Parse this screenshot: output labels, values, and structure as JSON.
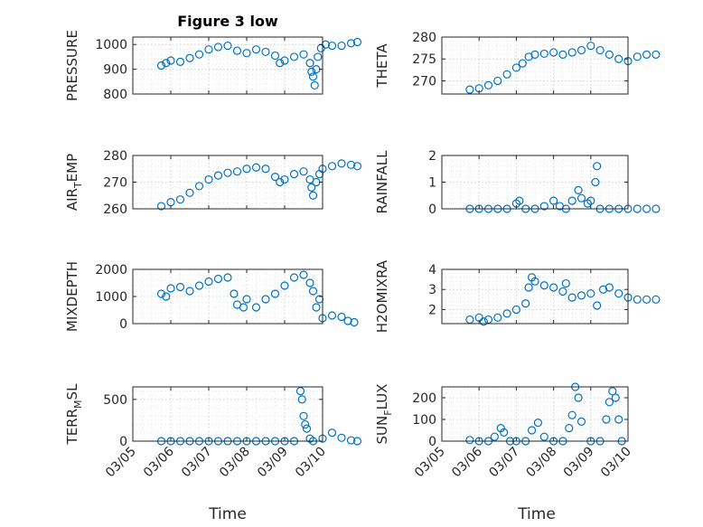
{
  "figure": {
    "title": "Figure 3 low",
    "xlabel": "Time"
  },
  "chart_data": [
    {
      "type": "scatter",
      "ylabel": "PRESSURE",
      "ylabel_sub": "",
      "ylim": [
        800,
        1030
      ],
      "yticks": [
        800,
        900,
        1000
      ],
      "ytick_labels": [
        "800",
        "900",
        "1000"
      ],
      "xlim": [
        "03/05",
        "03/10"
      ],
      "points": [
        [
          "03/05 18:00",
          915
        ],
        [
          "03/05 21:00",
          925
        ],
        [
          "03/06 00:00",
          935
        ],
        [
          "03/06 06:00",
          930
        ],
        [
          "03/06 12:00",
          945
        ],
        [
          "03/06 18:00",
          960
        ],
        [
          "03/07 00:00",
          980
        ],
        [
          "03/07 06:00",
          990
        ],
        [
          "03/07 12:00",
          995
        ],
        [
          "03/07 18:00",
          975
        ],
        [
          "03/08 00:00",
          965
        ],
        [
          "03/08 06:00",
          980
        ],
        [
          "03/08 12:00",
          970
        ],
        [
          "03/08 18:00",
          955
        ],
        [
          "03/08 21:00",
          925
        ],
        [
          "03/09 00:00",
          935
        ],
        [
          "03/09 06:00",
          950
        ],
        [
          "03/09 12:00",
          960
        ],
        [
          "03/09 16:00",
          925
        ],
        [
          "03/09 17:00",
          890
        ],
        [
          "03/09 18:00",
          870
        ],
        [
          "03/09 19:00",
          835
        ],
        [
          "03/09 20:00",
          900
        ],
        [
          "03/09 21:00",
          950
        ],
        [
          "03/09 23:00",
          985
        ],
        [
          "03/10 02:00",
          1000
        ],
        [
          "03/10 06:00",
          995
        ],
        [
          "03/10 12:00",
          995
        ],
        [
          "03/10 18:00",
          1005
        ],
        [
          "03/10 22:00",
          1010
        ]
      ]
    },
    {
      "type": "scatter",
      "ylabel": "THETA",
      "ylabel_sub": "",
      "ylim": [
        267,
        280
      ],
      "yticks": [
        270,
        275,
        280
      ],
      "ytick_labels": [
        "270",
        "275",
        "280"
      ],
      "xlim": [
        "03/05",
        "03/10"
      ],
      "points": [
        [
          "03/05 18:00",
          268
        ],
        [
          "03/06 00:00",
          268.3
        ],
        [
          "03/06 06:00",
          269
        ],
        [
          "03/06 12:00",
          270
        ],
        [
          "03/06 18:00",
          271.5
        ],
        [
          "03/07 00:00",
          273
        ],
        [
          "03/07 04:00",
          274
        ],
        [
          "03/07 08:00",
          275.5
        ],
        [
          "03/07 12:00",
          276
        ],
        [
          "03/07 18:00",
          276.2
        ],
        [
          "03/08 00:00",
          276.5
        ],
        [
          "03/08 06:00",
          276
        ],
        [
          "03/08 12:00",
          276.5
        ],
        [
          "03/08 18:00",
          277
        ],
        [
          "03/09 00:00",
          278
        ],
        [
          "03/09 06:00",
          277
        ],
        [
          "03/09 12:00",
          276
        ],
        [
          "03/09 18:00",
          275
        ],
        [
          "03/10 00:00",
          274.5
        ],
        [
          "03/10 06:00",
          275.5
        ],
        [
          "03/10 12:00",
          276
        ],
        [
          "03/10 18:00",
          276
        ]
      ]
    },
    {
      "type": "scatter",
      "ylabel": "AIR",
      "ylabel_sub": "T",
      "ylabel_after": "EMP",
      "ylim": [
        260,
        280
      ],
      "yticks": [
        260,
        270,
        280
      ],
      "ytick_labels": [
        "260",
        "270",
        "280"
      ],
      "xlim": [
        "03/05",
        "03/10"
      ],
      "points": [
        [
          "03/05 18:00",
          261
        ],
        [
          "03/06 00:00",
          262.5
        ],
        [
          "03/06 06:00",
          263.5
        ],
        [
          "03/06 12:00",
          266
        ],
        [
          "03/06 18:00",
          268.5
        ],
        [
          "03/07 00:00",
          271
        ],
        [
          "03/07 06:00",
          272.5
        ],
        [
          "03/07 12:00",
          273.5
        ],
        [
          "03/07 18:00",
          274
        ],
        [
          "03/08 00:00",
          275
        ],
        [
          "03/08 06:00",
          275.5
        ],
        [
          "03/08 12:00",
          275
        ],
        [
          "03/08 18:00",
          272
        ],
        [
          "03/08 21:00",
          270
        ],
        [
          "03/09 00:00",
          271
        ],
        [
          "03/09 06:00",
          273
        ],
        [
          "03/09 12:00",
          274
        ],
        [
          "03/09 16:00",
          271
        ],
        [
          "03/09 17:00",
          268
        ],
        [
          "03/09 18:00",
          265
        ],
        [
          "03/09 20:00",
          270
        ],
        [
          "03/09 22:00",
          273
        ],
        [
          "03/10 00:00",
          275
        ],
        [
          "03/10 06:00",
          276
        ],
        [
          "03/10 12:00",
          277
        ],
        [
          "03/10 18:00",
          276.5
        ],
        [
          "03/10 22:00",
          276
        ]
      ]
    },
    {
      "type": "scatter",
      "ylabel": "RAINFALL",
      "ylabel_sub": "",
      "ylim": [
        0,
        2
      ],
      "yticks": [
        0,
        1,
        2
      ],
      "ytick_labels": [
        "0",
        "1",
        "2"
      ],
      "xlim": [
        "03/05",
        "03/10"
      ],
      "points": [
        [
          "03/05 18:00",
          0
        ],
        [
          "03/06 00:00",
          0
        ],
        [
          "03/06 06:00",
          0
        ],
        [
          "03/06 12:00",
          0
        ],
        [
          "03/06 18:00",
          0
        ],
        [
          "03/07 00:00",
          0.2
        ],
        [
          "03/07 02:00",
          0.3
        ],
        [
          "03/07 06:00",
          0
        ],
        [
          "03/07 12:00",
          0
        ],
        [
          "03/07 18:00",
          0.1
        ],
        [
          "03/08 00:00",
          0.3
        ],
        [
          "03/08 04:00",
          0.1
        ],
        [
          "03/08 08:00",
          0
        ],
        [
          "03/08 12:00",
          0.3
        ],
        [
          "03/08 16:00",
          0.7
        ],
        [
          "03/08 18:00",
          0.4
        ],
        [
          "03/08 22:00",
          0.2
        ],
        [
          "03/09 00:00",
          0.3
        ],
        [
          "03/09 03:00",
          1.0
        ],
        [
          "03/09 04:00",
          1.6
        ],
        [
          "03/09 06:00",
          0
        ],
        [
          "03/09 12:00",
          0
        ],
        [
          "03/09 18:00",
          0
        ],
        [
          "03/10 00:00",
          0
        ],
        [
          "03/10 06:00",
          0
        ],
        [
          "03/10 12:00",
          0
        ],
        [
          "03/10 18:00",
          0
        ]
      ]
    },
    {
      "type": "scatter",
      "ylabel": "MIXDEPTH",
      "ylabel_sub": "",
      "ylim": [
        0,
        2000
      ],
      "yticks": [
        0,
        1000,
        2000
      ],
      "ytick_labels": [
        "0",
        "1000",
        "2000"
      ],
      "xlim": [
        "03/05",
        "03/10"
      ],
      "points": [
        [
          "03/05 18:00",
          1100
        ],
        [
          "03/05 21:00",
          1000
        ],
        [
          "03/06 00:00",
          1300
        ],
        [
          "03/06 06:00",
          1350
        ],
        [
          "03/06 12:00",
          1200
        ],
        [
          "03/06 18:00",
          1400
        ],
        [
          "03/07 00:00",
          1550
        ],
        [
          "03/07 06:00",
          1650
        ],
        [
          "03/07 12:00",
          1700
        ],
        [
          "03/07 16:00",
          1100
        ],
        [
          "03/07 18:00",
          700
        ],
        [
          "03/07 22:00",
          600
        ],
        [
          "03/08 00:00",
          900
        ],
        [
          "03/08 06:00",
          600
        ],
        [
          "03/08 12:00",
          900
        ],
        [
          "03/08 18:00",
          1100
        ],
        [
          "03/09 00:00",
          1400
        ],
        [
          "03/09 06:00",
          1700
        ],
        [
          "03/09 12:00",
          1800
        ],
        [
          "03/09 16:00",
          1500
        ],
        [
          "03/09 18:00",
          1200
        ],
        [
          "03/09 20:00",
          600
        ],
        [
          "03/09 22:00",
          900
        ],
        [
          "03/10 00:00",
          200
        ],
        [
          "03/10 06:00",
          300
        ],
        [
          "03/10 12:00",
          250
        ],
        [
          "03/10 16:00",
          100
        ],
        [
          "03/10 20:00",
          50
        ]
      ]
    },
    {
      "type": "scatter",
      "ylabel": "H2OMIXRA",
      "ylabel_sub": "",
      "ylim": [
        1.3,
        4
      ],
      "yticks": [
        2,
        3,
        4
      ],
      "ytick_labels": [
        "2",
        "3",
        "4"
      ],
      "xlim": [
        "03/05",
        "03/10"
      ],
      "points": [
        [
          "03/05 18:00",
          1.5
        ],
        [
          "03/06 00:00",
          1.6
        ],
        [
          "03/06 03:00",
          1.4
        ],
        [
          "03/06 06:00",
          1.5
        ],
        [
          "03/06 12:00",
          1.6
        ],
        [
          "03/06 18:00",
          1.8
        ],
        [
          "03/07 00:00",
          2.0
        ],
        [
          "03/07 06:00",
          2.3
        ],
        [
          "03/07 08:00",
          3.1
        ],
        [
          "03/07 10:00",
          3.6
        ],
        [
          "03/07 12:00",
          3.4
        ],
        [
          "03/07 18:00",
          3.2
        ],
        [
          "03/08 00:00",
          3.1
        ],
        [
          "03/08 06:00",
          2.9
        ],
        [
          "03/08 08:00",
          3.3
        ],
        [
          "03/08 12:00",
          2.6
        ],
        [
          "03/08 18:00",
          2.7
        ],
        [
          "03/09 00:00",
          2.8
        ],
        [
          "03/09 04:00",
          2.2
        ],
        [
          "03/09 08:00",
          3.0
        ],
        [
          "03/09 12:00",
          3.1
        ],
        [
          "03/09 18:00",
          2.8
        ],
        [
          "03/10 00:00",
          2.6
        ],
        [
          "03/10 06:00",
          2.5
        ],
        [
          "03/10 12:00",
          2.5
        ],
        [
          "03/10 18:00",
          2.5
        ]
      ]
    },
    {
      "type": "scatter",
      "ylabel": "TERR",
      "ylabel_sub": "M",
      "ylabel_after": "SL",
      "ylim": [
        0,
        650
      ],
      "yticks": [
        0,
        500
      ],
      "ytick_labels": [
        "0",
        "500"
      ],
      "xlim": [
        "03/05",
        "03/10"
      ],
      "points": [
        [
          "03/05 18:00",
          0
        ],
        [
          "03/06 00:00",
          0
        ],
        [
          "03/06 06:00",
          0
        ],
        [
          "03/06 12:00",
          0
        ],
        [
          "03/06 18:00",
          0
        ],
        [
          "03/07 00:00",
          0
        ],
        [
          "03/07 06:00",
          0
        ],
        [
          "03/07 12:00",
          0
        ],
        [
          "03/07 18:00",
          0
        ],
        [
          "03/08 00:00",
          0
        ],
        [
          "03/08 06:00",
          0
        ],
        [
          "03/08 12:00",
          0
        ],
        [
          "03/08 18:00",
          0
        ],
        [
          "03/09 00:00",
          0
        ],
        [
          "03/09 06:00",
          0
        ],
        [
          "03/09 10:00",
          600
        ],
        [
          "03/09 11:00",
          500
        ],
        [
          "03/09 12:00",
          300
        ],
        [
          "03/09 13:00",
          200
        ],
        [
          "03/09 14:00",
          150
        ],
        [
          "03/09 16:00",
          30
        ],
        [
          "03/09 18:00",
          0
        ],
        [
          "03/10 00:00",
          30
        ],
        [
          "03/10 06:00",
          100
        ],
        [
          "03/10 12:00",
          40
        ],
        [
          "03/10 18:00",
          10
        ],
        [
          "03/10 22:00",
          0
        ]
      ]
    },
    {
      "type": "scatter",
      "ylabel": "SUN",
      "ylabel_sub": "F",
      "ylabel_after": "LUX",
      "ylim": [
        0,
        250
      ],
      "yticks": [
        0,
        100,
        200
      ],
      "ytick_labels": [
        "0",
        "100",
        "200"
      ],
      "xlim": [
        "03/05",
        "03/10"
      ],
      "points": [
        [
          "03/05 18:00",
          5
        ],
        [
          "03/06 00:00",
          0
        ],
        [
          "03/06 06:00",
          0
        ],
        [
          "03/06 10:00",
          20
        ],
        [
          "03/06 14:00",
          60
        ],
        [
          "03/06 16:00",
          40
        ],
        [
          "03/06 20:00",
          0
        ],
        [
          "03/07 00:00",
          0
        ],
        [
          "03/07 06:00",
          0
        ],
        [
          "03/07 10:00",
          50
        ],
        [
          "03/07 14:00",
          85
        ],
        [
          "03/07 18:00",
          20
        ],
        [
          "03/08 00:00",
          0
        ],
        [
          "03/08 06:00",
          0
        ],
        [
          "03/08 10:00",
          60
        ],
        [
          "03/08 12:00",
          120
        ],
        [
          "03/08 14:00",
          250
        ],
        [
          "03/08 16:00",
          200
        ],
        [
          "03/08 18:00",
          90
        ],
        [
          "03/09 00:00",
          0
        ],
        [
          "03/09 06:00",
          0
        ],
        [
          "03/09 10:00",
          100
        ],
        [
          "03/09 12:00",
          180
        ],
        [
          "03/09 14:00",
          230
        ],
        [
          "03/09 16:00",
          200
        ],
        [
          "03/09 18:00",
          100
        ],
        [
          "03/09 20:00",
          0
        ]
      ]
    }
  ],
  "x_ticks": [
    "03/05",
    "03/06",
    "03/07",
    "03/08",
    "03/09",
    "03/10"
  ],
  "colors": {
    "marker": "#0072BD"
  }
}
